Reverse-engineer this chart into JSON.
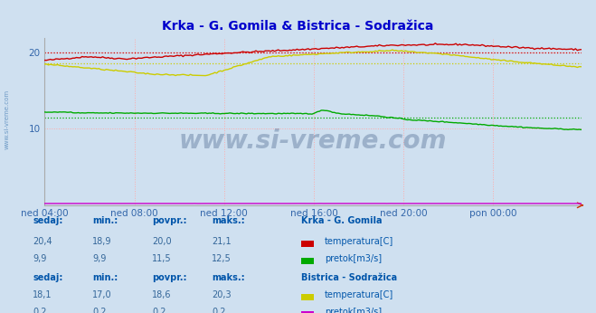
{
  "title": "Krka - G. Gomila & Bistrica - Sodražica",
  "title_color": "#0000cc",
  "bg_color": "#cfe0f0",
  "plot_bg_color": "#cfe0f0",
  "grid_color": "#ffaaaa",
  "ylim": [
    0,
    22
  ],
  "yticks": [
    10,
    20
  ],
  "xlabel_color": "#3366aa",
  "xtick_labels": [
    "ned 04:00",
    "ned 08:00",
    "ned 12:00",
    "ned 16:00",
    "ned 20:00",
    "pon 00:00"
  ],
  "x_positions": [
    0,
    48,
    96,
    144,
    192,
    240
  ],
  "total_points": 288,
  "krka_temp_color": "#cc0000",
  "krka_flow_color": "#00aa00",
  "bistrica_temp_color": "#cccc00",
  "bistrica_flow_color": "#cc00cc",
  "avg_krka_temp": 20.0,
  "avg_krka_flow": 11.5,
  "avg_bistrica_temp": 18.6,
  "avg_bistrica_flow": 0.2,
  "min_krka_temp": 18.9,
  "max_krka_temp": 21.1,
  "min_krka_flow": 9.9,
  "max_krka_flow": 12.5,
  "min_bistrica_temp": 17.0,
  "max_bistrica_temp": 20.3,
  "min_bistrica_flow": 0.2,
  "max_bistrica_flow": 0.2,
  "sedaj_krka_temp": "20,4",
  "sedaj_krka_flow": "9,9",
  "sedaj_bistrica_temp": "18,1",
  "sedaj_bistrica_flow": "0,2",
  "min_krka_temp_s": "18,9",
  "min_krka_flow_s": "9,9",
  "min_bistrica_temp_s": "17,0",
  "min_bistrica_flow_s": "0,2",
  "avg_krka_temp_s": "20,0",
  "avg_krka_flow_s": "11,5",
  "avg_bistrica_temp_s": "18,6",
  "avg_bistrica_flow_s": "0,2",
  "max_krka_temp_s": "21,1",
  "max_krka_flow_s": "12,5",
  "max_bistrica_temp_s": "20,3",
  "max_bistrica_flow_s": "0,2",
  "watermark": "www.si-vreme.com",
  "watermark_color": "#1a3a6a",
  "table_label_color": "#0055aa",
  "table_value_color": "#336699"
}
